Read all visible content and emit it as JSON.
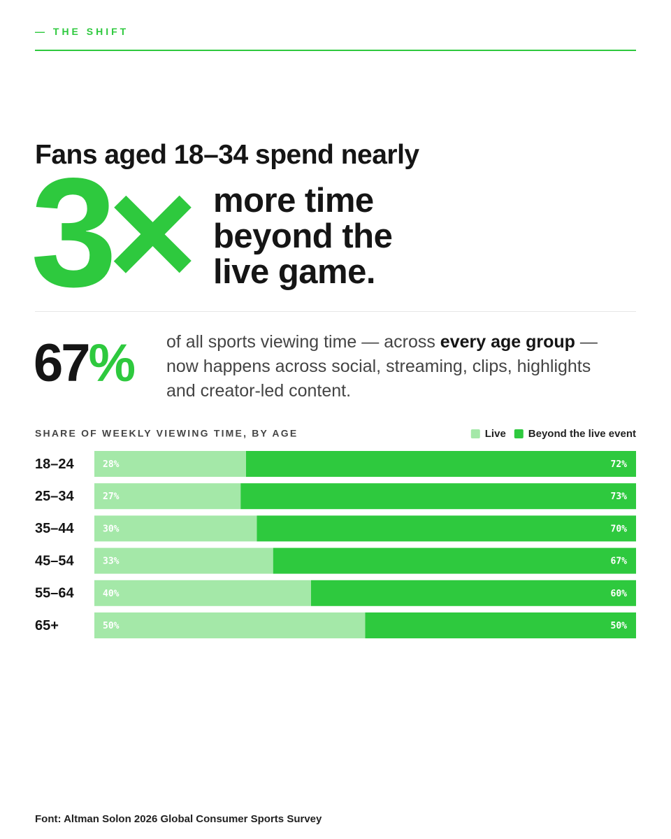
{
  "header": {
    "kicker": "— THE SHIFT"
  },
  "headline": {
    "lead": "Fans aged 18–34 spend nearly",
    "big": "3×",
    "lines": [
      "more time",
      "beyond the",
      "live game."
    ]
  },
  "stat": {
    "number": "67",
    "unit": "%",
    "segments": [
      {
        "text": "of all sports viewing time — across ",
        "bold": false
      },
      {
        "text": "every age group",
        "bold": true
      },
      {
        "text": " — now happens across social, streaming, clips, highlights and creator-led content.",
        "bold": false
      }
    ]
  },
  "chart_data": {
    "type": "bar",
    "orientation": "horizontal",
    "stacked": true,
    "title": "SHARE OF WEEKLY VIEWING TIME, BY AGE",
    "categories": [
      "18–24",
      "25–34",
      "35–44",
      "45–54",
      "55–64",
      "65+"
    ],
    "xlim": [
      0,
      100
    ],
    "legend": "top-right",
    "series": [
      {
        "name": "Live",
        "color": "#a4e8a8",
        "values": [
          28,
          27,
          30,
          33,
          40,
          50
        ],
        "value_labels": [
          "28%",
          "27%",
          "30%",
          "33%",
          "40%",
          "50%"
        ]
      },
      {
        "name": "Beyond the live event",
        "color": "#2ec93e",
        "values": [
          72,
          73,
          70,
          67,
          60,
          50
        ],
        "value_labels": [
          "72%",
          "73%",
          "70%",
          "67%",
          "60%",
          "50%"
        ]
      }
    ]
  },
  "footer": {
    "source": "Font: Altman Solon 2026 Global Consumer Sports Survey"
  }
}
